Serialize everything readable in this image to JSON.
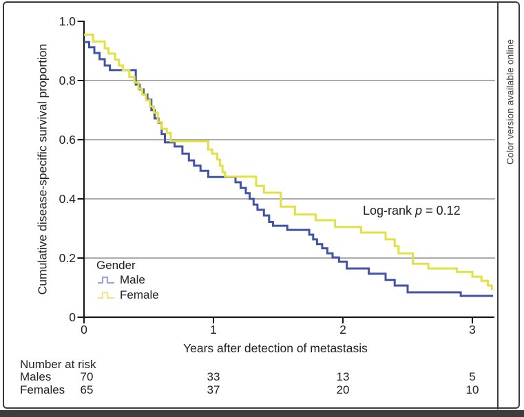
{
  "figure": {
    "sidebar_note": "Color version available online"
  },
  "chart_data": {
    "type": "line",
    "subtype": "kaplan-meier-step-curves",
    "title": "",
    "xlabel": "Years after detection of metastasis",
    "ylabel": "Cumulative disease-specific survival proportion",
    "xlim": [
      0,
      3.2
    ],
    "ylim": [
      0,
      1.0
    ],
    "xticks": [
      "0",
      "1",
      "2",
      "3"
    ],
    "yticks": [
      "1.0",
      "0.8",
      "0.6",
      "0.4",
      "0.2",
      "0"
    ],
    "grid": "horizontal gridlines at 0.2, 0.4, 0.6, 0.8",
    "annotation": {
      "prefix": "Log-rank ",
      "p": "p",
      "suffix": " = 0.12"
    },
    "legend": {
      "title": "Gender",
      "position": "inside lower-left",
      "entries": [
        {
          "label": "Male",
          "marker_color": "#9aa4d6"
        },
        {
          "label": "Female",
          "marker_color": "#ebe88a"
        }
      ]
    },
    "series": [
      {
        "name": "Male",
        "color": "#4353a4",
        "steps": [
          [
            0.0,
            0.93
          ],
          [
            0.04,
            0.912
          ],
          [
            0.08,
            0.893
          ],
          [
            0.12,
            0.872
          ],
          [
            0.16,
            0.851
          ],
          [
            0.2,
            0.835
          ],
          [
            0.4,
            0.786
          ],
          [
            0.43,
            0.77
          ],
          [
            0.46,
            0.753
          ],
          [
            0.49,
            0.735
          ],
          [
            0.52,
            0.7
          ],
          [
            0.545,
            0.672
          ],
          [
            0.575,
            0.658
          ],
          [
            0.6,
            0.619
          ],
          [
            0.625,
            0.591
          ],
          [
            0.7,
            0.577
          ],
          [
            0.76,
            0.553
          ],
          [
            0.81,
            0.53
          ],
          [
            0.85,
            0.512
          ],
          [
            0.9,
            0.495
          ],
          [
            0.96,
            0.474
          ],
          [
            1.17,
            0.456
          ],
          [
            1.21,
            0.437
          ],
          [
            1.25,
            0.419
          ],
          [
            1.28,
            0.4
          ],
          [
            1.31,
            0.381
          ],
          [
            1.34,
            0.363
          ],
          [
            1.39,
            0.344
          ],
          [
            1.43,
            0.322
          ],
          [
            1.46,
            0.309
          ],
          [
            1.57,
            0.295
          ],
          [
            1.74,
            0.279
          ],
          [
            1.77,
            0.263
          ],
          [
            1.8,
            0.247
          ],
          [
            1.84,
            0.233
          ],
          [
            1.88,
            0.216
          ],
          [
            1.92,
            0.202
          ],
          [
            1.97,
            0.188
          ],
          [
            2.03,
            0.165
          ],
          [
            2.2,
            0.147
          ],
          [
            2.33,
            0.126
          ],
          [
            2.4,
            0.107
          ],
          [
            2.5,
            0.084
          ],
          [
            2.91,
            0.072
          ],
          [
            3.16,
            0.072
          ]
        ]
      },
      {
        "name": "Female",
        "color": "#e2e044",
        "steps": [
          [
            0.0,
            0.955
          ],
          [
            0.07,
            0.932
          ],
          [
            0.16,
            0.909
          ],
          [
            0.19,
            0.891
          ],
          [
            0.24,
            0.87
          ],
          [
            0.27,
            0.851
          ],
          [
            0.3,
            0.835
          ],
          [
            0.35,
            0.812
          ],
          [
            0.39,
            0.793
          ],
          [
            0.42,
            0.772
          ],
          [
            0.45,
            0.753
          ],
          [
            0.48,
            0.733
          ],
          [
            0.51,
            0.712
          ],
          [
            0.54,
            0.691
          ],
          [
            0.57,
            0.66
          ],
          [
            0.6,
            0.637
          ],
          [
            0.64,
            0.623
          ],
          [
            0.67,
            0.595
          ],
          [
            0.96,
            0.567
          ],
          [
            0.99,
            0.553
          ],
          [
            1.03,
            0.533
          ],
          [
            1.05,
            0.512
          ],
          [
            1.07,
            0.49
          ],
          [
            1.09,
            0.475
          ],
          [
            1.33,
            0.444
          ],
          [
            1.39,
            0.421
          ],
          [
            1.52,
            0.374
          ],
          [
            1.63,
            0.347
          ],
          [
            1.79,
            0.328
          ],
          [
            1.94,
            0.305
          ],
          [
            2.14,
            0.286
          ],
          [
            2.33,
            0.263
          ],
          [
            2.4,
            0.24
          ],
          [
            2.43,
            0.216
          ],
          [
            2.54,
            0.181
          ],
          [
            2.66,
            0.165
          ],
          [
            2.88,
            0.153
          ],
          [
            3.0,
            0.137
          ],
          [
            3.07,
            0.123
          ],
          [
            3.12,
            0.107
          ],
          [
            3.15,
            0.093
          ]
        ]
      }
    ]
  },
  "risk_table": {
    "title": "Number at risk",
    "columns": [
      "0",
      "1",
      "2",
      "3"
    ],
    "rows": [
      {
        "label": "Males",
        "values": [
          "70",
          "33",
          "13",
          "5"
        ]
      },
      {
        "label": "Females",
        "values": [
          "65",
          "37",
          "20",
          "10"
        ]
      }
    ]
  }
}
